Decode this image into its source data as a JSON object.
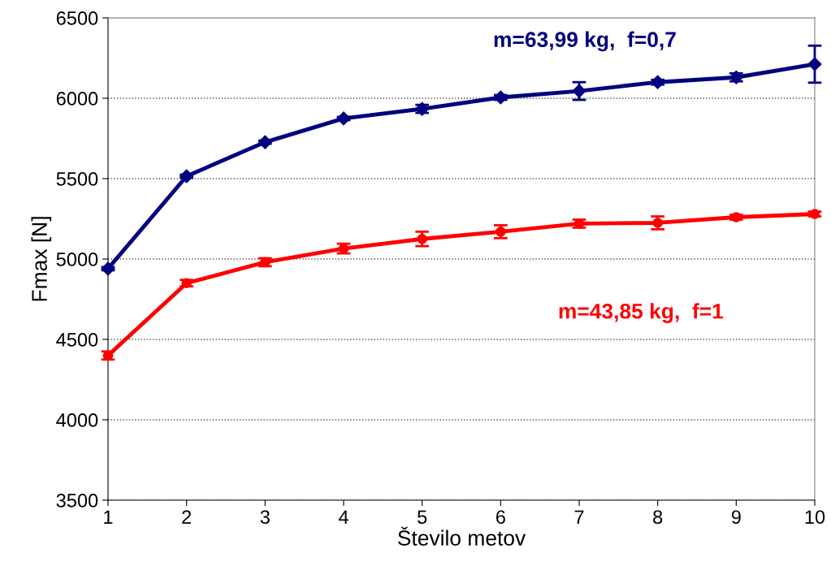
{
  "chart_data": {
    "type": "line",
    "xlabel": "Število metov",
    "ylabel": "Fmax [N]",
    "x": [
      1,
      2,
      3,
      4,
      5,
      6,
      7,
      8,
      9,
      10
    ],
    "xlim": [
      1,
      10
    ],
    "xticks": [
      1,
      2,
      3,
      4,
      5,
      6,
      7,
      8,
      9,
      10
    ],
    "ylim": [
      3500,
      6500
    ],
    "yticks": [
      3500,
      4000,
      4500,
      5000,
      5500,
      6000,
      6500
    ],
    "grid": "y",
    "line_style": "solid",
    "series": [
      {
        "name": "m=63,99 kg,  f=0,7",
        "color": "#000080",
        "marker": "diamond",
        "values": [
          4940,
          5515,
          5727,
          5874,
          5934,
          6005,
          6045,
          6100,
          6130,
          6212
        ],
        "errors": [
          10,
          10,
          10,
          10,
          25,
          15,
          55,
          15,
          25,
          115
        ]
      },
      {
        "name": "m=43,85 kg,  f=1",
        "color": "#ff0000",
        "marker": "circle",
        "values": [
          4400,
          4850,
          4980,
          5065,
          5125,
          5170,
          5220,
          5225,
          5260,
          5280
        ],
        "errors": [
          25,
          20,
          25,
          30,
          45,
          40,
          25,
          40,
          15,
          15
        ]
      }
    ]
  }
}
